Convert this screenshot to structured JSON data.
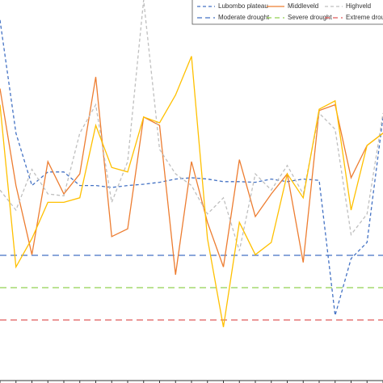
{
  "chart_data": {
    "type": "line",
    "categories": [
      null,
      null,
      null,
      null,
      null,
      null,
      null,
      null,
      null,
      null,
      null,
      null,
      null,
      null,
      null,
      null,
      null,
      null,
      null,
      null,
      null,
      null,
      null,
      null,
      null
    ],
    "ylim": [
      -2.975,
      2.95
    ],
    "series": [
      {
        "name": "Lubombo plateau",
        "color": "#4472c4",
        "dash": "4,3",
        "values": [
          2.64,
          0.89,
          0.08,
          0.29,
          0.29,
          0.08,
          0.08,
          0.05,
          0.08,
          0.1,
          0.13,
          0.18,
          0.2,
          0.18,
          0.14,
          0.14,
          0.13,
          0.18,
          0.14,
          0.18,
          0.16,
          -1.93,
          -1.05,
          -0.8,
          1.14
        ]
      },
      {
        "name": "Middleveld",
        "color": "#ed7d31",
        "values": [
          1.58,
          0.08,
          -0.99,
          0.45,
          -0.05,
          0.26,
          1.76,
          -0.71,
          -0.59,
          1.14,
          1.01,
          -1.3,
          0.45,
          -0.49,
          -1.18,
          0.48,
          -0.4,
          -0.05,
          0.26,
          -1.11,
          1.24,
          1.33,
          0.2,
          0.7,
          0.89
        ]
      },
      {
        "name": "Highveld",
        "color": "#bfbfbf",
        "dash": "4,3",
        "values": [
          0.01,
          -0.3,
          0.33,
          -0.05,
          -0.08,
          0.89,
          1.33,
          -0.18,
          0.45,
          2.95,
          0.64,
          0.26,
          0.08,
          -0.36,
          -0.11,
          -0.93,
          0.26,
          0.01,
          0.39,
          -0.05,
          1.2,
          0.95,
          -0.68,
          -0.36,
          1.2
        ]
      },
      {
        "color": "#ffc000",
        "values": [
          1.33,
          -1.18,
          -0.74,
          -0.18,
          -0.18,
          -0.11,
          1.01,
          0.36,
          0.29,
          1.14,
          1.05,
          1.48,
          2.08,
          -0.74,
          -2.11,
          -0.49,
          -0.99,
          -0.8,
          0.26,
          -0.11,
          1.26,
          1.39,
          -0.3,
          0.7,
          0.89
        ]
      }
    ],
    "reference_lines": [
      {
        "name": "Moderate drought",
        "color": "#4472c4",
        "value": -1
      },
      {
        "name": "Severe drought",
        "color": "#92d050",
        "value": -1.5
      },
      {
        "name": "Extreme drou",
        "color": "#e05a5a",
        "value": -2
      }
    ]
  }
}
